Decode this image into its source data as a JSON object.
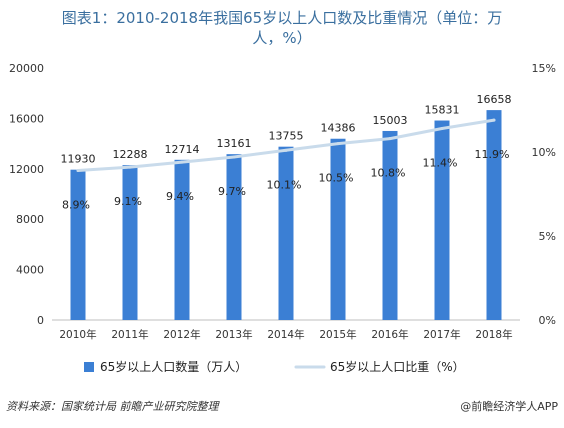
{
  "title_line1": "图表1：2010-2018年我国65岁以上人口数及比重情况（单位：万",
  "title_line2": "人，%）",
  "source": "资料来源：国家统计局 前瞻产业研究院整理",
  "credit": "@前瞻经济学人APP",
  "chart_data": {
    "type": "bar+line",
    "categories": [
      "2010年",
      "2011年",
      "2012年",
      "2013年",
      "2014年",
      "2015年",
      "2016年",
      "2017年",
      "2018年"
    ],
    "series": [
      {
        "name": "65岁以上人口数量（万人）",
        "type": "bar",
        "axis": "left",
        "values": [
          11930,
          12288,
          12714,
          13161,
          13755,
          14386,
          15003,
          15831,
          16658
        ],
        "labels": [
          "11930",
          "12288",
          "12714",
          "13161",
          "13755",
          "14386",
          "15003",
          "15831",
          "16658"
        ],
        "color": "#3b7fd4"
      },
      {
        "name": "65岁以上人口比重（%）",
        "type": "line",
        "axis": "right",
        "values": [
          8.9,
          9.1,
          9.4,
          9.7,
          10.1,
          10.5,
          10.8,
          11.4,
          11.9
        ],
        "labels": [
          "8.9%",
          "9.1%",
          "9.4%",
          "9.7%",
          "10.1%",
          "10.5%",
          "10.8%",
          "11.4%",
          "11.9%"
        ],
        "color": "#c9dbeb"
      }
    ],
    "left_axis": {
      "min": 0,
      "max": 20000,
      "ticks": [
        "0",
        "4000",
        "8000",
        "12000",
        "16000",
        "20000"
      ]
    },
    "right_axis": {
      "min": 0,
      "max": 15,
      "ticks": [
        "0%",
        "5%",
        "10%",
        "15%"
      ]
    },
    "legend_position": "bottom"
  }
}
